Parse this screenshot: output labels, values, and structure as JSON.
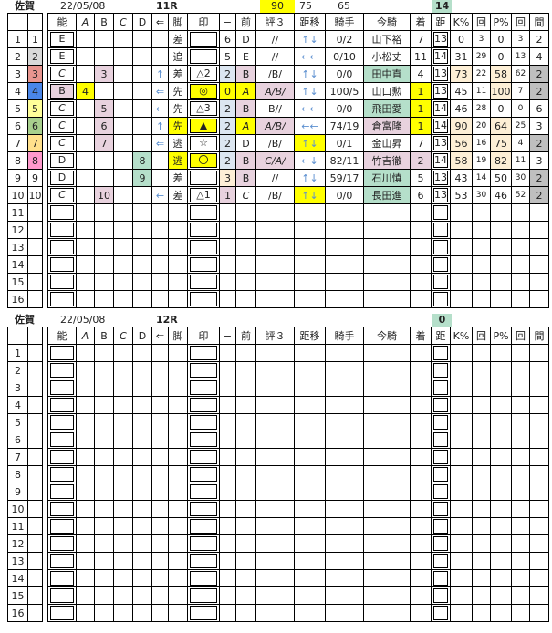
{
  "colors": {
    "yellow": "#ffff00",
    "pink": "#e8d2de",
    "green": "#b5dfca",
    "lblue": "#dce6f1",
    "lorange": "#fdefd6",
    "gray": "#bfbfbf",
    "h1": "#ffffff",
    "h2": "#d9d9d9",
    "h3": "#e8958f",
    "h4": "#4a86e8",
    "h5": "#ffff99",
    "h6": "#a8d08d",
    "h7": "#ffe08c",
    "h8": "#ff99cc"
  },
  "headers": [
    "",
    "",
    "能",
    "A",
    "B",
    "C",
    "D",
    "⇐",
    "脚",
    "印",
    "−",
    "前",
    "評３",
    "距移",
    "騎手",
    "今騎",
    "着",
    "距",
    "K%",
    "回",
    "P%",
    "回",
    "間"
  ],
  "races": [
    {
      "venue": "佐賀",
      "date": "22/05/08",
      "race": "11R",
      "top": {
        "hyo": "90",
        "kyori": "75",
        "kishu": "65",
        "dist": "14"
      },
      "rows": [
        [
          "1",
          "1",
          "E",
          "",
          "",
          "",
          "",
          "",
          "差",
          "",
          "6",
          "D",
          "//",
          "↑↓",
          "0/2",
          "山下裕",
          "7",
          "13",
          "0",
          "3",
          "0",
          "3",
          "2"
        ],
        [
          "2",
          "2",
          "E",
          "",
          "",
          "",
          "",
          "",
          "追",
          "",
          "5",
          "E",
          "//",
          "←←",
          "0/10",
          "小松丈",
          "11",
          "14",
          "31",
          "29",
          "0",
          "13",
          "4"
        ],
        [
          "3",
          "3",
          "C",
          "",
          "3",
          "",
          "",
          "↑",
          "差",
          "△2",
          "2",
          "B",
          "/B/",
          "↑↓",
          "0/0",
          "田中直",
          "4",
          "13",
          "73",
          "22",
          "58",
          "62",
          "2"
        ],
        [
          "4",
          "4",
          "B",
          "4",
          "",
          "",
          "",
          "⇐",
          "先",
          "◎",
          "0",
          "A",
          "A/B/",
          "↑↓",
          "100/5",
          "山口勲",
          "1",
          "13",
          "45",
          "11",
          "100",
          "7",
          "2"
        ],
        [
          "5",
          "5",
          "C",
          "",
          "5",
          "",
          "",
          "←",
          "先",
          "△3",
          "2",
          "B",
          "B//",
          "←←",
          "0/0",
          "飛田愛",
          "1",
          "14",
          "46",
          "28",
          "0",
          "0",
          "6"
        ],
        [
          "6",
          "6",
          "C",
          "",
          "6",
          "",
          "",
          "↑",
          "先",
          "▲",
          "2",
          "A",
          "A/B/",
          "←←",
          "74/19",
          "倉富隆",
          "1",
          "14",
          "90",
          "20",
          "64",
          "25",
          "3"
        ],
        [
          "7",
          "7",
          "C",
          "",
          "7",
          "",
          "",
          "⇐",
          "逃",
          "☆",
          "2",
          "D",
          "/B/",
          "↑↓",
          "0/1",
          "金山昇",
          "7",
          "13",
          "56",
          "16",
          "75",
          "4",
          "2"
        ],
        [
          "8",
          "8",
          "D",
          "",
          "",
          "",
          "8",
          "",
          "逃",
          "〇",
          "2",
          "B",
          "C/A/",
          "←↓",
          "82/11",
          "竹吉徹",
          "2",
          "14",
          "58",
          "19",
          "82",
          "11",
          "3"
        ],
        [
          "9",
          "9",
          "D",
          "",
          "",
          "",
          "9",
          "",
          "差",
          "",
          "3",
          "B",
          "//",
          "↑↓",
          "59/17",
          "石川慎",
          "5",
          "13",
          "43",
          "14",
          "50",
          "30",
          "2"
        ],
        [
          "10",
          "10",
          "C",
          "",
          "10",
          "",
          "",
          "←",
          "差",
          "△1",
          "1",
          "C",
          "/B/",
          "↑↓",
          "0/0",
          "長田進",
          "6",
          "13",
          "53",
          "30",
          "46",
          "52",
          "2"
        ],
        [
          "11"
        ],
        [
          "12"
        ],
        [
          "13"
        ],
        [
          "14"
        ],
        [
          "15"
        ],
        [
          "16"
        ]
      ],
      "highlights": [
        {},
        {},
        {
          "4": "pink",
          "10": "lblue",
          "11": "pink",
          "15": "green",
          "18": "lorange",
          "20": "lorange",
          "22": "gray"
        },
        {
          "2": "pink",
          "3": "yellow",
          "9": "yellow",
          "10": "yellow",
          "11": "yellow",
          "12": "pink",
          "16": "yellow",
          "20": "lorange",
          "22": "gray"
        },
        {
          "4": "pink",
          "10": "lblue",
          "11": "pink",
          "15": "green",
          "16": "yellow"
        },
        {
          "4": "pink",
          "8": "yellow",
          "9": "yellow",
          "10": "lblue",
          "11": "yellow",
          "12": "pink",
          "15": "pink",
          "16": "yellow",
          "18": "lorange",
          "20": "lorange"
        },
        {
          "4": "pink",
          "10": "lblue",
          "13": "yellow",
          "18": "lorange",
          "20": "lorange",
          "22": "gray"
        },
        {
          "6": "green",
          "8": "yellow",
          "9": "yellow",
          "10": "lblue",
          "11": "pink",
          "12": "pink",
          "15": "pink",
          "16": "pink",
          "18": "lorange",
          "20": "lorange"
        },
        {
          "6": "green",
          "10": "lorange",
          "11": "pink",
          "15": "green",
          "22": "gray"
        },
        {
          "4": "pink",
          "10": "pink",
          "13": "yellow",
          "15": "green",
          "22": "gray"
        }
      ]
    },
    {
      "venue": "佐賀",
      "date": "22/05/08",
      "race": "12R",
      "top": {
        "hyo": "",
        "kyori": "",
        "kishu": "",
        "dist": "0"
      },
      "rows": [
        [
          "1"
        ],
        [
          "2"
        ],
        [
          "3"
        ],
        [
          "4"
        ],
        [
          "5"
        ],
        [
          "6"
        ],
        [
          "7"
        ],
        [
          "8"
        ],
        [
          "9"
        ],
        [
          "10"
        ],
        [
          "11"
        ],
        [
          "12"
        ],
        [
          "13"
        ],
        [
          "14"
        ],
        [
          "15"
        ],
        [
          "16"
        ]
      ],
      "highlights": []
    }
  ]
}
